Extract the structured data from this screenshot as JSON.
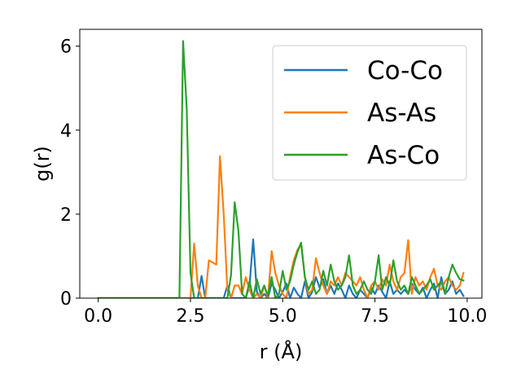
{
  "chart_data": {
    "type": "line",
    "title": "",
    "xlabel": "r (Å)",
    "ylabel": "g(r)",
    "xlim": [
      -0.5,
      10.4
    ],
    "ylim": [
      0,
      6.4
    ],
    "xticks": [
      0.0,
      2.5,
      5.0,
      7.5,
      10.0
    ],
    "xtick_labels": [
      "0.0",
      "2.5",
      "5.0",
      "7.5",
      "10.0"
    ],
    "yticks": [
      0,
      2,
      4,
      6
    ],
    "ytick_labels": [
      "0",
      "2",
      "4",
      "6"
    ],
    "grid": false,
    "legend_position": "top-right",
    "series": [
      {
        "name": "Co-Co",
        "color": "#1f77b4",
        "x": [
          0.0,
          2.5,
          2.6,
          2.7,
          2.8,
          2.9,
          3.4,
          3.5,
          3.6,
          4.0,
          4.1,
          4.2,
          4.3,
          4.4,
          4.5,
          4.6,
          4.7,
          4.8,
          4.9,
          5.0,
          5.1,
          5.2,
          5.3,
          5.4,
          5.5,
          5.6,
          5.7,
          5.8,
          5.9,
          6.0,
          6.1,
          6.2,
          6.3,
          6.4,
          6.5,
          6.6,
          6.7,
          6.8,
          6.9,
          7.0,
          7.1,
          7.2,
          7.3,
          7.4,
          7.5,
          7.6,
          7.7,
          7.8,
          7.9,
          8.0,
          8.1,
          8.2,
          8.3,
          8.4,
          8.5,
          8.6,
          8.7,
          8.8,
          8.9,
          9.0,
          9.1,
          9.2,
          9.3,
          9.4,
          9.5,
          9.6,
          9.7,
          9.8,
          9.9
        ],
        "y": [
          0,
          0,
          0,
          0,
          0.53,
          0,
          0,
          0.3,
          0,
          0,
          0.3,
          1.4,
          0.15,
          0,
          0.1,
          0,
          0.35,
          0.2,
          0,
          0.15,
          0.35,
          0,
          0.25,
          0.1,
          0,
          0.4,
          0,
          0.15,
          0.5,
          0.25,
          0.45,
          0.1,
          0.3,
          0.1,
          0.35,
          0.2,
          0,
          0.3,
          0.1,
          0,
          0.2,
          0.1,
          0,
          0.25,
          0.1,
          0.3,
          0.15,
          0,
          0.4,
          0.1,
          0.2,
          0.1,
          0.2,
          0.1,
          0.35,
          0.2,
          0.1,
          0.25,
          0,
          0.2,
          0.35,
          0,
          0.5,
          0.1,
          0.2,
          0.4,
          0.1,
          0.2,
          0.05
        ]
      },
      {
        "name": "As-As",
        "color": "#ff7f0e",
        "x": [
          0.0,
          2.5,
          2.6,
          2.7,
          2.8,
          2.9,
          3.0,
          3.1,
          3.2,
          3.3,
          3.4,
          3.5,
          3.6,
          3.7,
          3.8,
          3.9,
          4.0,
          4.1,
          4.2,
          4.3,
          4.4,
          4.5,
          4.6,
          4.7,
          4.8,
          4.9,
          5.0,
          5.1,
          5.2,
          5.3,
          5.4,
          5.5,
          5.6,
          5.7,
          5.8,
          5.9,
          6.0,
          6.1,
          6.2,
          6.3,
          6.4,
          6.5,
          6.6,
          6.7,
          6.8,
          6.9,
          7.0,
          7.1,
          7.2,
          7.3,
          7.4,
          7.5,
          7.6,
          7.7,
          7.8,
          7.9,
          8.0,
          8.1,
          8.2,
          8.3,
          8.4,
          8.5,
          8.6,
          8.7,
          8.8,
          8.9,
          9.0,
          9.1,
          9.2,
          9.3,
          9.4,
          9.5,
          9.6,
          9.7,
          9.8,
          9.9
        ],
        "y": [
          0,
          0,
          1.3,
          0.3,
          0,
          0,
          0.9,
          0.85,
          0.8,
          3.38,
          2.0,
          0.2,
          0,
          0.3,
          0.3,
          0.1,
          0.5,
          0.2,
          0,
          0.1,
          0,
          0.3,
          0,
          1.12,
          0.6,
          0.3,
          0.1,
          0,
          0.5,
          0.9,
          1.15,
          1.28,
          0.5,
          0.1,
          0.2,
          0.95,
          0.6,
          0.3,
          0.1,
          0.4,
          0.3,
          0.5,
          0.3,
          0.6,
          0.5,
          0.4,
          0.3,
          0.5,
          0.2,
          0,
          0.3,
          0.4,
          0.2,
          0.45,
          0.3,
          0.8,
          0.4,
          0.2,
          0.5,
          0.6,
          1.38,
          0.1,
          0.5,
          0.3,
          0.4,
          0.2,
          0.5,
          0.7,
          0.3,
          0.2,
          0.4,
          0.5,
          0.3,
          0.2,
          0.3,
          0.6
        ]
      },
      {
        "name": "As-Co",
        "color": "#2ca02c",
        "x": [
          0.0,
          2.2,
          2.3,
          2.4,
          2.5,
          2.6,
          2.7,
          3.4,
          3.5,
          3.6,
          3.7,
          3.8,
          3.9,
          4.0,
          4.1,
          4.2,
          4.3,
          4.4,
          4.5,
          4.6,
          4.7,
          4.8,
          4.9,
          5.0,
          5.1,
          5.2,
          5.3,
          5.4,
          5.5,
          5.6,
          5.7,
          5.8,
          5.9,
          6.0,
          6.1,
          6.2,
          6.3,
          6.4,
          6.5,
          6.6,
          6.7,
          6.8,
          6.9,
          7.0,
          7.1,
          7.2,
          7.3,
          7.4,
          7.5,
          7.6,
          7.7,
          7.8,
          7.9,
          8.0,
          8.1,
          8.2,
          8.3,
          8.4,
          8.5,
          8.6,
          8.7,
          8.8,
          8.9,
          9.0,
          9.1,
          9.2,
          9.3,
          9.4,
          9.5,
          9.6,
          9.7,
          9.8,
          9.9
        ],
        "y": [
          0,
          0,
          6.12,
          4.5,
          0.6,
          0,
          0,
          0,
          0,
          0.55,
          2.28,
          1.6,
          0.1,
          0,
          0.4,
          0,
          0.45,
          0.1,
          0.3,
          0.05,
          0.5,
          0,
          0.1,
          0.65,
          0.2,
          0.4,
          0.8,
          1.1,
          1.32,
          0.5,
          0.2,
          0.4,
          0.1,
          0.2,
          0.65,
          0.3,
          0.8,
          0.4,
          0.2,
          0.3,
          0.5,
          1.02,
          0.3,
          0.1,
          0.2,
          0.4,
          0.2,
          0.1,
          0.4,
          1.02,
          0.2,
          0.5,
          0.3,
          0.9,
          0.4,
          0.2,
          0.3,
          0.1,
          0.5,
          0.3,
          0.1,
          0.2,
          0.3,
          0.45,
          0.2,
          0.3,
          0.4,
          0.1,
          0.5,
          0.8,
          0.6,
          0.45,
          0.42
        ]
      }
    ]
  }
}
